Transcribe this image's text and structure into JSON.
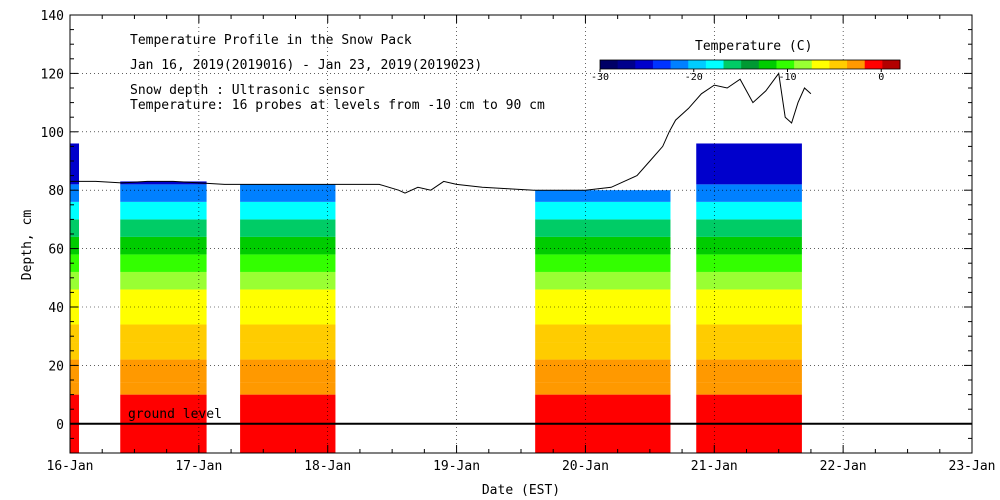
{
  "chart_data": {
    "type": "heatmap",
    "title": "Temperature Profile in the Snow Pack",
    "subtitle": "Jan 16, 2019(2019016) - Jan 23, 2019(2019023)",
    "notes": [
      "Snow depth : Ultrasonic sensor",
      "Temperature: 16 probes at levels from -10 cm to 90 cm"
    ],
    "xlabel": "Date (EST)",
    "ylabel": "Depth, cm",
    "xlim": [
      16,
      23
    ],
    "ylim": [
      -10,
      140
    ],
    "x_ticks": [
      "16-Jan",
      "17-Jan",
      "18-Jan",
      "19-Jan",
      "20-Jan",
      "21-Jan",
      "22-Jan",
      "23-Jan"
    ],
    "y_ticks": [
      0,
      20,
      40,
      60,
      80,
      100,
      120,
      140
    ],
    "ground_label": "ground level",
    "legend": {
      "title": "Temperature (C)",
      "range": [
        -30,
        2
      ],
      "tick_labels": [
        "-30",
        "-20",
        "-10",
        "0"
      ],
      "tick_values": [
        -30,
        -20,
        -10,
        0
      ],
      "colors": [
        "#000066",
        "#00008c",
        "#0000cc",
        "#0033ff",
        "#0080ff",
        "#00ccff",
        "#00ffff",
        "#00cc66",
        "#009933",
        "#00cc00",
        "#33ff00",
        "#99ff33",
        "#ffff00",
        "#ffcc00",
        "#ff9900",
        "#ff0000",
        "#b30000"
      ]
    },
    "temperature_bands": [
      {
        "y": [
          -10,
          10
        ],
        "temp": -0.5
      },
      {
        "y": [
          10,
          14
        ],
        "temp": -2
      },
      {
        "y": [
          14,
          22
        ],
        "temp": -3
      },
      {
        "y": [
          22,
          28
        ],
        "temp": -4
      },
      {
        "y": [
          28,
          34
        ],
        "temp": -5
      },
      {
        "y": [
          34,
          40
        ],
        "temp": -6
      },
      {
        "y": [
          40,
          46
        ],
        "temp": -7
      },
      {
        "y": [
          46,
          52
        ],
        "temp": -8
      },
      {
        "y": [
          52,
          58
        ],
        "temp": -10
      },
      {
        "y": [
          58,
          64
        ],
        "temp": -12
      },
      {
        "y": [
          64,
          70
        ],
        "temp": -15
      },
      {
        "y": [
          70,
          76
        ],
        "temp": -18
      },
      {
        "y": [
          76,
          82
        ],
        "temp": -22
      },
      {
        "y": [
          82,
          96
        ],
        "temp": -25
      }
    ],
    "data_blocks": [
      {
        "x": [
          16.0,
          16.07
        ],
        "top": 96,
        "note": "partial column"
      },
      {
        "x": [
          16.39,
          17.06
        ],
        "top": 83
      },
      {
        "x": [
          17.32,
          18.06
        ],
        "top": 82
      },
      {
        "x": [
          19.61,
          20.66
        ],
        "top": 80
      },
      {
        "x": [
          20.86,
          21.68
        ],
        "top": 96
      }
    ],
    "snow_depth": {
      "x": [
        16.0,
        16.1,
        16.2,
        16.4,
        16.6,
        16.8,
        17.0,
        17.2,
        17.4,
        17.6,
        17.8,
        18.0,
        18.2,
        18.4,
        18.55,
        18.6,
        18.7,
        18.8,
        18.9,
        19.0,
        19.2,
        19.4,
        19.6,
        19.8,
        20.0,
        20.2,
        20.3,
        20.4,
        20.5,
        20.6,
        20.65,
        20.7,
        20.8,
        20.9,
        21.0,
        21.1,
        21.2,
        21.3,
        21.4,
        21.5,
        21.55,
        21.6,
        21.65,
        21.7,
        21.75
      ],
      "y": [
        83,
        83,
        83,
        82.5,
        83,
        83,
        82.5,
        82,
        82,
        82,
        82,
        82,
        82,
        82,
        80,
        79,
        81,
        80,
        83,
        82,
        81,
        80.5,
        80,
        80,
        80,
        81,
        83,
        85,
        90,
        95,
        100,
        104,
        108,
        113,
        116,
        115,
        118,
        110,
        114,
        120,
        105,
        103,
        110,
        115,
        113
      ]
    }
  }
}
